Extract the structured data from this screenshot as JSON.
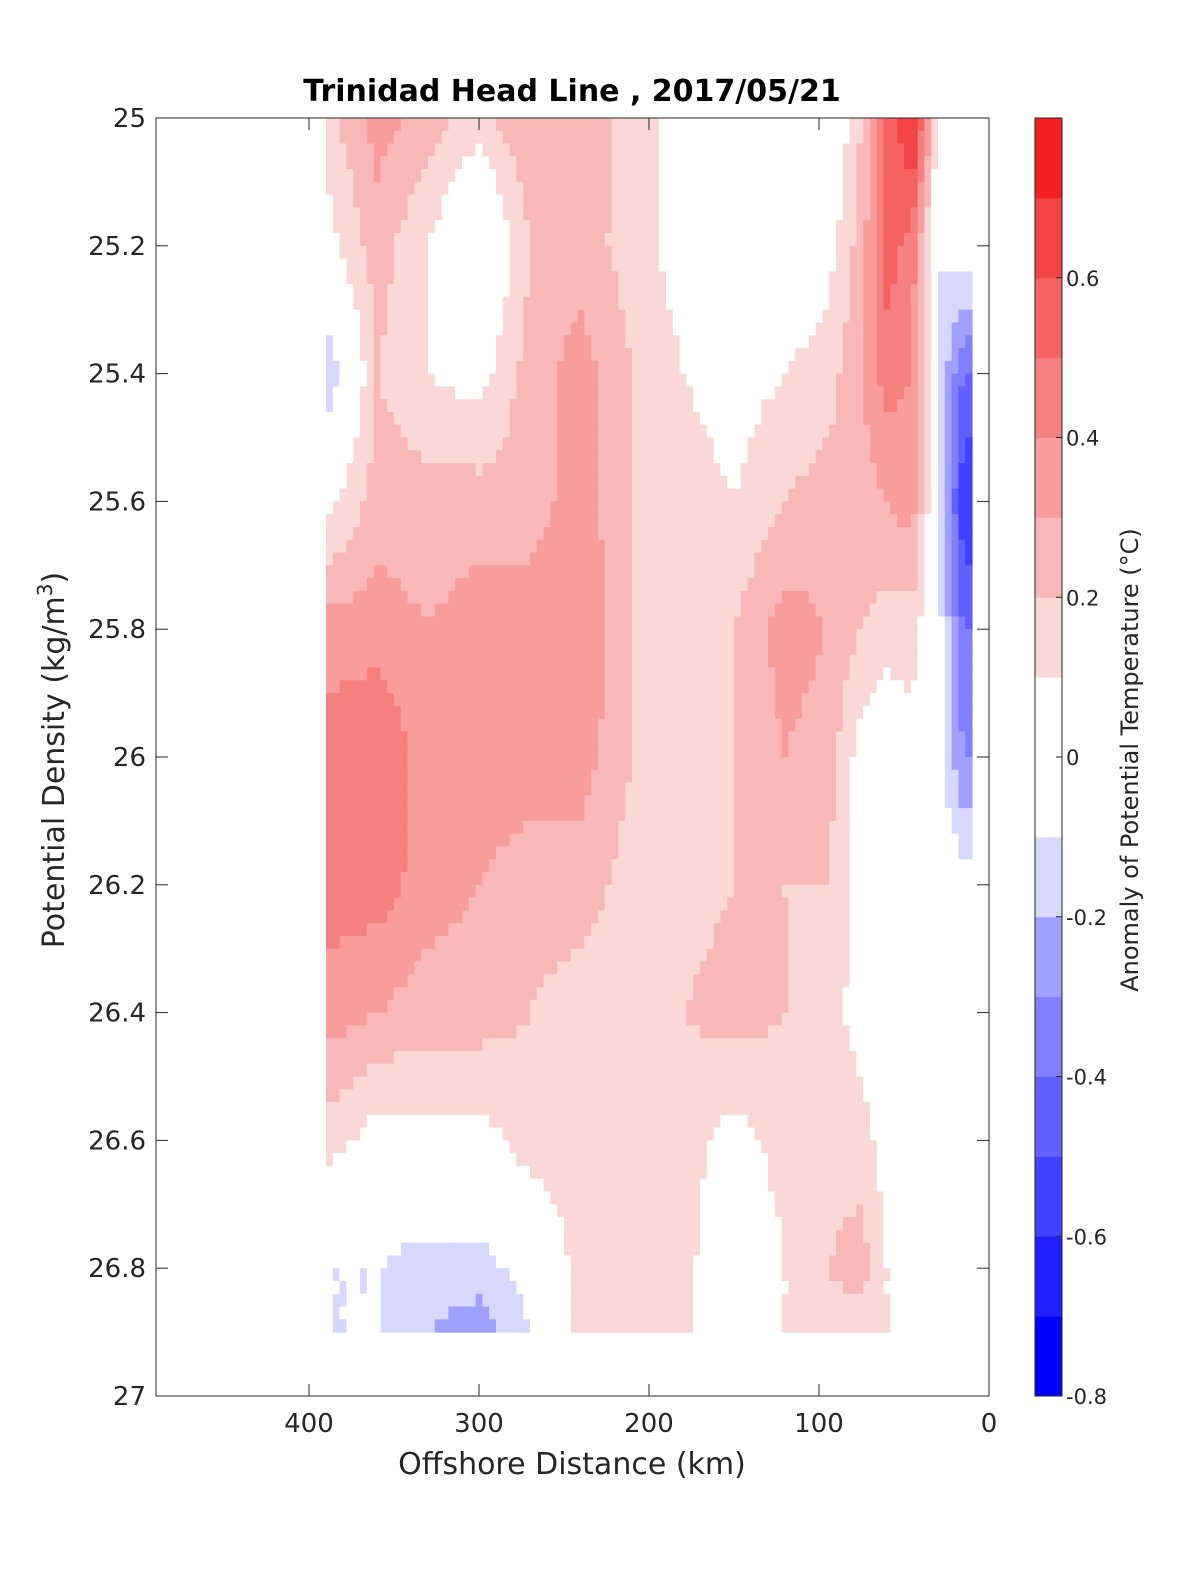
{
  "chart_data": {
    "type": "heatmap",
    "title": "Trinidad Head Line , 2017/05/21",
    "xlabel": "Offshore Distance (km)",
    "ylabel_main": "Potential Density (kg/m",
    "ylabel_sup": "3",
    "ylabel_end": ")",
    "colorbar_label": "Anomaly of Potential Temperature (°C)",
    "x_reversed": true,
    "y_reversed": true,
    "xlim": [
      0,
      490
    ],
    "ylim": [
      25,
      27
    ],
    "x_ticks": [
      400,
      300,
      200,
      100,
      0
    ],
    "x_tick_labels": [
      "400",
      "300",
      "200",
      "100",
      "0"
    ],
    "y_ticks": [
      25,
      25.2,
      25.4,
      25.6,
      25.8,
      26,
      26.2,
      26.4,
      26.6,
      26.8,
      27
    ],
    "y_tick_labels": [
      "25",
      "25.2",
      "25.4",
      "25.6",
      "25.8",
      "26",
      "26.2",
      "26.4",
      "26.6",
      "26.8",
      "27"
    ],
    "data_x_range": [
      10,
      390
    ],
    "data_y_range": [
      25,
      26.9
    ],
    "colorbar": {
      "lim": [
        -0.8,
        0.8
      ],
      "ticks": [
        0.6,
        0.4,
        0.2,
        0,
        -0.2,
        -0.4,
        -0.6,
        -0.8
      ],
      "tick_labels": [
        "0.6",
        "0.4",
        "0.2",
        "0",
        "-0.2",
        "-0.4",
        "-0.6",
        "-0.8"
      ],
      "levels": [
        -0.8,
        -0.7,
        -0.6,
        -0.5,
        -0.4,
        -0.3,
        -0.2,
        -0.1,
        0.1,
        0.2,
        0.3,
        0.4,
        0.5,
        0.6,
        0.7,
        0.8
      ],
      "colors": [
        "#0000ff",
        "#2020ff",
        "#4040ff",
        "#6060ff",
        "#8080ff",
        "#a0a0ff",
        "#d8d8ff",
        "#ffffff",
        "#fbd8d8",
        "#f9b8b8",
        "#f89c9c",
        "#f58080",
        "#f46262",
        "#f24444",
        "#f22222",
        "#ff0000"
      ]
    },
    "x_samples": [
      390,
      360,
      330,
      300,
      270,
      240,
      210,
      180,
      150,
      120,
      95,
      75,
      60,
      45,
      30,
      15
    ],
    "y_samples": [
      25.0,
      25.2,
      25.4,
      25.6,
      25.8,
      26.0,
      26.2,
      26.4,
      26.6,
      26.8,
      26.9
    ],
    "anomaly": [
      [
        0.15,
        0.35,
        0.25,
        0.15,
        0.3,
        0.3,
        0.15,
        0.05,
        0.1,
        0.05,
        -0.05,
        0.2,
        0.5,
        0.75,
        0.1,
        0.0
      ],
      [
        0.05,
        0.25,
        0.1,
        -0.1,
        0.2,
        0.25,
        0.15,
        0.05,
        0.05,
        0.0,
        0.05,
        0.25,
        0.55,
        0.45,
        -0.1,
        0.0
      ],
      [
        -0.2,
        0.2,
        0.1,
        0.05,
        0.25,
        0.35,
        0.2,
        0.1,
        0.05,
        0.1,
        0.15,
        0.3,
        0.45,
        0.4,
        -0.1,
        -0.4
      ],
      [
        0.05,
        0.25,
        0.25,
        0.25,
        0.25,
        0.35,
        0.2,
        0.15,
        0.1,
        0.2,
        0.25,
        0.25,
        0.3,
        0.35,
        -0.05,
        -0.6
      ],
      [
        0.35,
        0.35,
        0.3,
        0.35,
        0.35,
        0.4,
        0.2,
        0.15,
        0.2,
        0.35,
        0.3,
        0.2,
        0.15,
        0.15,
        -0.05,
        -0.4
      ],
      [
        0.45,
        0.5,
        0.35,
        0.35,
        0.35,
        0.35,
        0.2,
        0.15,
        0.2,
        0.3,
        0.25,
        0.05,
        0.0,
        0.05,
        -0.05,
        -0.3
      ],
      [
        0.45,
        0.45,
        0.35,
        0.3,
        0.25,
        0.25,
        0.15,
        0.15,
        0.2,
        0.2,
        0.2,
        0.05,
        -0.05,
        0.05,
        0.0,
        -0.05
      ],
      [
        0.35,
        0.3,
        0.25,
        0.25,
        0.2,
        0.15,
        0.15,
        0.2,
        0.25,
        0.2,
        0.15,
        0.05,
        -0.05,
        0.05,
        0.0,
        0.0
      ],
      [
        0.15,
        0.05,
        0.05,
        0.05,
        0.15,
        0.15,
        0.15,
        0.15,
        0.05,
        0.15,
        0.15,
        0.15,
        0.05,
        0.05,
        0.1,
        0.0
      ],
      [
        -0.1,
        -0.1,
        -0.15,
        -0.15,
        -0.05,
        0.15,
        0.15,
        0.15,
        -0.05,
        0.1,
        0.2,
        0.25,
        0.1,
        0.05,
        0.05,
        0.0
      ],
      [
        -0.1,
        -0.1,
        -0.2,
        -0.25,
        -0.1,
        0.15,
        0.15,
        0.15,
        -0.1,
        0.1,
        0.15,
        0.15,
        0.1,
        0.05,
        0.0,
        0.0
      ]
    ]
  }
}
